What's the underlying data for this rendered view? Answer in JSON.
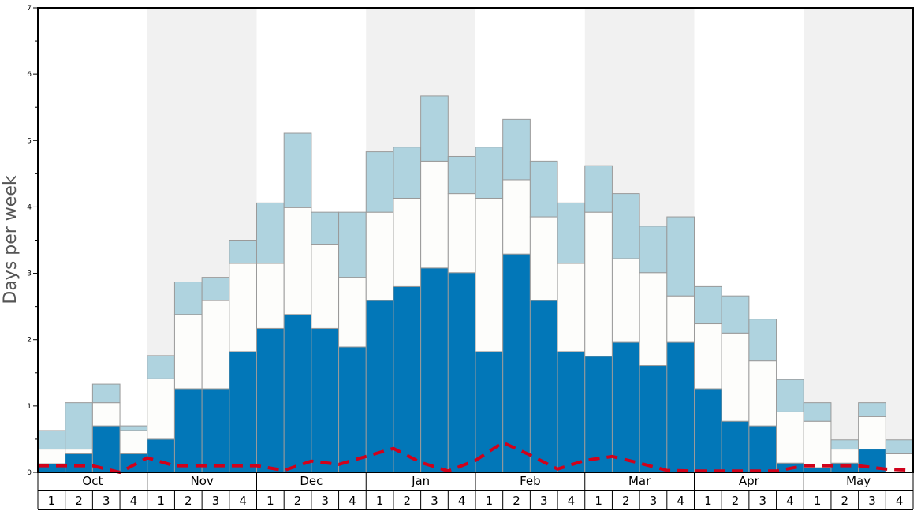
{
  "chart_data": {
    "type": "bar",
    "stacked": true,
    "title": "",
    "xlabel": "",
    "ylabel": "Days per week",
    "ylim": [
      0,
      7
    ],
    "y_ticks": [
      0,
      1,
      2,
      3,
      4,
      5,
      6,
      7
    ],
    "months": [
      "Oct",
      "Nov",
      "Dec",
      "Jan",
      "Feb",
      "Mar",
      "Apr",
      "May"
    ],
    "week_labels": [
      "1",
      "2",
      "3",
      "4"
    ],
    "colors": {
      "dark": "#0277b8",
      "light": "#fdfdfb",
      "pale": "#afd3df",
      "band": "#f1f1f1",
      "line": "#d0021b",
      "edge": "#9a9a9a"
    },
    "series": [
      {
        "name": "bottom (dark blue)",
        "values": [
          0.13,
          0.28,
          0.7,
          0.28,
          0.5,
          1.26,
          1.26,
          1.82,
          2.17,
          2.38,
          2.17,
          1.89,
          2.59,
          2.8,
          3.08,
          3.01,
          1.82,
          3.29,
          2.59,
          1.82,
          1.75,
          1.96,
          1.61,
          1.96,
          1.26,
          0.77,
          0.7,
          0.14,
          0.07,
          0.14,
          0.35,
          0.0
        ]
      },
      {
        "name": "middle (white)",
        "values": [
          0.22,
          0.07,
          0.35,
          0.35,
          0.91,
          1.12,
          1.33,
          1.33,
          0.98,
          1.61,
          1.26,
          1.05,
          1.33,
          1.33,
          1.61,
          1.19,
          2.31,
          1.12,
          1.26,
          1.33,
          2.17,
          1.26,
          1.4,
          0.7,
          0.98,
          1.33,
          0.98,
          0.77,
          0.7,
          0.21,
          0.49,
          0.28
        ]
      },
      {
        "name": "top (light blue)",
        "values": [
          0.28,
          0.7,
          0.28,
          0.07,
          0.35,
          0.49,
          0.35,
          0.35,
          0.91,
          1.12,
          0.49,
          0.98,
          0.91,
          0.77,
          0.98,
          0.56,
          0.77,
          0.91,
          0.84,
          0.91,
          0.7,
          0.98,
          0.7,
          1.19,
          0.56,
          0.56,
          0.63,
          0.49,
          0.28,
          0.14,
          0.21,
          0.21
        ]
      }
    ],
    "line": {
      "name": "dashed average",
      "style": "dashed",
      "values": [
        0.1,
        0.1,
        0.1,
        0.0,
        0.22,
        0.1,
        0.1,
        0.1,
        0.1,
        0.03,
        0.17,
        0.12,
        0.24,
        0.36,
        0.15,
        0.02,
        0.18,
        0.45,
        0.26,
        0.05,
        0.18,
        0.24,
        0.14,
        0.03,
        0.02,
        0.02,
        0.02,
        0.02,
        0.1,
        0.1,
        0.1,
        0.05,
        0.03
      ]
    }
  }
}
